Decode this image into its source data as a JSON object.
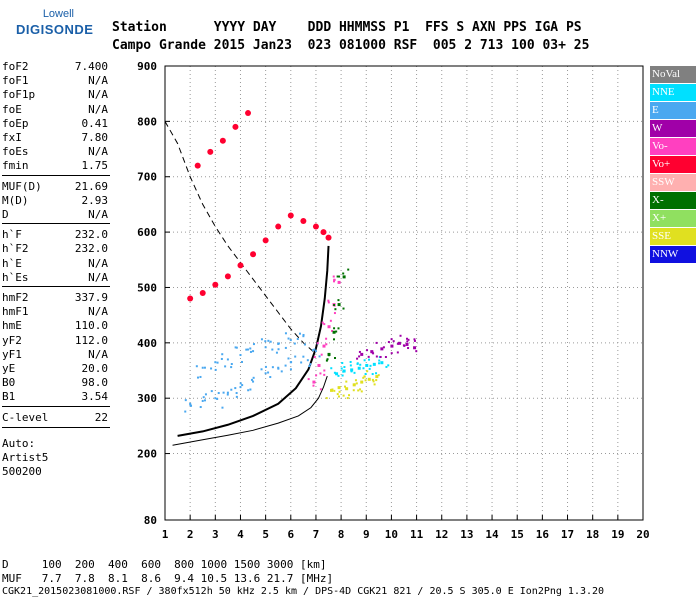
{
  "logo": {
    "line1": "Lowell",
    "line2": "DIGISONDE"
  },
  "header": {
    "labels_row": "Station      YYYY DAY    DDD HHMMSS P1  FFS S AXN PPS IGA PS",
    "values_row": "Campo Grande 2015 Jan23  023 081000 RSF  005 2 713 100 03+ 25"
  },
  "params": [
    {
      "k": "foF2",
      "v": "7.400"
    },
    {
      "k": "foF1",
      "v": "N/A"
    },
    {
      "k": "foF1p",
      "v": "N/A"
    },
    {
      "k": "foE",
      "v": "N/A"
    },
    {
      "k": "foEp",
      "v": "0.41"
    },
    {
      "k": "fxI",
      "v": "7.80"
    },
    {
      "k": "foEs",
      "v": "N/A"
    },
    {
      "k": "fmin",
      "v": "1.75"
    },
    {
      "k": "MUF(D)",
      "v": "21.69"
    },
    {
      "k": "M(D)",
      "v": "2.93"
    },
    {
      "k": "D",
      "v": "N/A"
    },
    {
      "k": "h`F",
      "v": "232.0"
    },
    {
      "k": "h`F2",
      "v": "232.0"
    },
    {
      "k": "h`E",
      "v": "N/A"
    },
    {
      "k": "h`Es",
      "v": "N/A"
    },
    {
      "k": "hmF2",
      "v": "337.9"
    },
    {
      "k": "hmF1",
      "v": "N/A"
    },
    {
      "k": "hmE",
      "v": "110.0"
    },
    {
      "k": "yF2",
      "v": "112.0"
    },
    {
      "k": "yF1",
      "v": "N/A"
    },
    {
      "k": "yE",
      "v": "20.0"
    },
    {
      "k": "B0",
      "v": "98.0"
    },
    {
      "k": "B1",
      "v": "3.54"
    },
    {
      "k": "C-level",
      "v": "22"
    }
  ],
  "auto": {
    "l1": "Auto:",
    "l2": "Artist5",
    "l3": "500200"
  },
  "legend": [
    {
      "label": "NoVal",
      "color": "#808080"
    },
    {
      "label": "NNE",
      "color": "#00e0ff"
    },
    {
      "label": "E",
      "color": "#4aa8f0"
    },
    {
      "label": "W",
      "color": "#a000a8"
    },
    {
      "label": "Vo-",
      "color": "#ff40c0"
    },
    {
      "label": "Vo+",
      "color": "#ff0030"
    },
    {
      "label": "SSW",
      "color": "#ffb0b0"
    },
    {
      "label": "X-",
      "color": "#007000"
    },
    {
      "label": "X+",
      "color": "#90e060"
    },
    {
      "label": "SSE",
      "color": "#e0e020"
    },
    {
      "label": "NNW",
      "color": "#1010e0"
    }
  ],
  "footer": {
    "d_row": "D     100  200  400  600  800 1000 1500 3000 [km]",
    "muf_row": "MUF   7.7  7.8  8.1  8.6  9.4 10.5 13.6 21.7 [MHz]",
    "file_row": "CGK21_2015023081000.RSF / 380fx512h 50 kHz 2.5 km / DPS-4D CGK21 821 / 20.5 S 305.0 E Ion2Png 1.3.20"
  },
  "chart_data": {
    "type": "scatter",
    "xlabel": "",
    "ylabel": "",
    "xlim": [
      1,
      20
    ],
    "ylim": [
      80,
      900
    ],
    "x_ticks": [
      1,
      2,
      3,
      4,
      5,
      6,
      7,
      8,
      9,
      10,
      11,
      12,
      13,
      14,
      15,
      16,
      17,
      18,
      19,
      20
    ],
    "y_ticks": [
      80,
      200,
      300,
      400,
      500,
      600,
      700,
      800,
      900
    ],
    "series": [
      {
        "color": "#000000",
        "style": "solid",
        "width": 2,
        "x": [
          1.5,
          2.5,
          3.5,
          4.5,
          5.5,
          6.2,
          6.7,
          7.0,
          7.2,
          7.35,
          7.45,
          7.5
        ],
        "y": [
          232,
          240,
          252,
          268,
          290,
          318,
          352,
          390,
          430,
          480,
          530,
          575
        ]
      },
      {
        "color": "#000000",
        "style": "solid",
        "width": 1,
        "x": [
          1.3,
          2.5,
          3.5,
          4.5,
          5.5,
          6.3,
          6.8,
          7.1,
          7.3,
          7.45
        ],
        "y": [
          215,
          225,
          233,
          242,
          255,
          268,
          283,
          300,
          320,
          340
        ]
      },
      {
        "color": "#000000",
        "style": "dashed",
        "width": 1,
        "x": [
          1.0,
          1.5,
          2.0,
          2.5,
          3.0,
          3.5,
          4.0,
          4.5,
          5.0,
          5.5,
          6.0,
          6.5,
          7.0
        ],
        "y": [
          800,
          760,
          700,
          650,
          610,
          575,
          545,
          515,
          485,
          455,
          425,
          400,
          380
        ]
      },
      {
        "color": "#ff0030",
        "style": "points",
        "width": 3,
        "x": [
          2.0,
          2.5,
          3.0,
          3.5,
          4.0,
          4.5,
          5.0,
          5.5,
          6.0,
          6.5,
          7.0,
          7.3,
          7.5
        ],
        "y": [
          480,
          490,
          505,
          520,
          540,
          560,
          585,
          610,
          630,
          620,
          610,
          600,
          590
        ]
      },
      {
        "color": "#ff0030",
        "style": "points",
        "width": 3,
        "x": [
          2.3,
          2.8,
          3.3,
          3.8,
          4.3
        ],
        "y": [
          720,
          745,
          765,
          790,
          815
        ]
      },
      {
        "color": "#4aa8f0",
        "style": "cloud",
        "width": 2,
        "x": [
          2.0,
          2.5,
          3.0,
          3.5,
          4.0,
          4.5,
          5.0,
          5.5,
          6.0,
          6.5,
          7.0
        ],
        "y": [
          290,
          295,
          300,
          310,
          320,
          330,
          345,
          355,
          365,
          375,
          385
        ]
      },
      {
        "color": "#4aa8f0",
        "style": "cloud",
        "width": 2,
        "x": [
          2.5,
          3.0,
          3.5,
          4.0,
          4.5,
          5.0,
          5.5,
          6.0,
          6.5
        ],
        "y": [
          355,
          365,
          370,
          378,
          385,
          392,
          398,
          405,
          412
        ]
      },
      {
        "color": "#e0e020",
        "style": "cloud",
        "width": 3,
        "x": [
          7.6,
          7.9,
          8.2,
          8.5,
          8.8,
          9.1,
          9.4
        ],
        "y": [
          315,
          320,
          318,
          325,
          330,
          335,
          340
        ]
      },
      {
        "color": "#00e0ff",
        "style": "cloud",
        "width": 3,
        "x": [
          7.8,
          8.1,
          8.4,
          8.7,
          9.0,
          9.3,
          9.6
        ],
        "y": [
          345,
          350,
          352,
          355,
          360,
          362,
          365
        ]
      },
      {
        "color": "#a000a8",
        "style": "cloud",
        "width": 3,
        "x": [
          8.8,
          9.2,
          9.6,
          10.0,
          10.3,
          10.6,
          10.9
        ],
        "y": [
          380,
          385,
          390,
          395,
          400,
          398,
          392
        ]
      },
      {
        "color": "#ff40c0",
        "style": "cloud",
        "width": 3,
        "x": [
          6.9,
          7.1,
          7.3,
          7.5,
          7.7,
          7.9
        ],
        "y": [
          330,
          360,
          395,
          430,
          470,
          510
        ]
      },
      {
        "color": "#007000",
        "style": "cloud",
        "width": 3,
        "x": [
          7.5,
          7.7,
          7.9,
          8.1
        ],
        "y": [
          380,
          420,
          470,
          520
        ]
      }
    ]
  }
}
